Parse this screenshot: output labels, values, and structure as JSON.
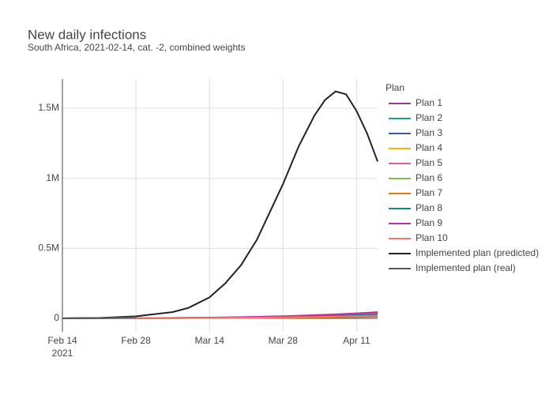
{
  "chart_data": {
    "type": "line",
    "title": "New daily infections",
    "subtitle": "South Africa, 2021-02-14, cat. -2, combined weights",
    "legend_title": "Plan",
    "legend_position": "right",
    "grid": true,
    "x": [
      "2021-02-14",
      "2021-02-21",
      "2021-02-28",
      "2021-03-07",
      "2021-03-10",
      "2021-03-14",
      "2021-03-17",
      "2021-03-20",
      "2021-03-23",
      "2021-03-26",
      "2021-03-28",
      "2021-03-31",
      "2021-04-03",
      "2021-04-05",
      "2021-04-07",
      "2021-04-09",
      "2021-04-11",
      "2021-04-13",
      "2021-04-15"
    ],
    "xlim": [
      "2021-02-14",
      "2021-04-15"
    ],
    "xticks": [
      {
        "value": "2021-02-14",
        "label": "Feb 14"
      },
      {
        "value": "2021-02-28",
        "label": "Feb 28"
      },
      {
        "value": "2021-03-14",
        "label": "Mar 14"
      },
      {
        "value": "2021-03-28",
        "label": "Mar 28"
      },
      {
        "value": "2021-04-11",
        "label": "Apr 11"
      }
    ],
    "xtick_year": "2021",
    "ylim": [
      -96000,
      1709000
    ],
    "yticks": [
      0,
      {
        "value": 500000,
        "label": "0.5M"
      },
      {
        "value": 1000000,
        "label": "1M"
      },
      {
        "value": 1500000,
        "label": "1.5M"
      }
    ],
    "series": [
      {
        "name": "Plan 1",
        "color": "#8e3d8f",
        "values": [
          0,
          1000,
          2000,
          3000,
          4000,
          5000,
          6500,
          8000,
          10000,
          12000,
          13500,
          16000,
          19000,
          21000,
          23000,
          26000,
          29000,
          32000,
          35000
        ]
      },
      {
        "name": "Plan 2",
        "color": "#1f9e89",
        "values": [
          0,
          800,
          1500,
          2500,
          3000,
          4000,
          5000,
          6000,
          7500,
          9000,
          10000,
          12000,
          14000,
          15500,
          17000,
          19000,
          21000,
          23000,
          25000
        ]
      },
      {
        "name": "Plan 3",
        "color": "#3a5ba0",
        "values": [
          0,
          700,
          1300,
          2000,
          2500,
          3200,
          4000,
          5000,
          6000,
          7000,
          8000,
          9500,
          11000,
          12000,
          13500,
          15000,
          16500,
          18000,
          20000
        ]
      },
      {
        "name": "Plan 4",
        "color": "#f2b701",
        "values": [
          0,
          600,
          1100,
          1700,
          2100,
          2700,
          3300,
          4000,
          4800,
          5600,
          6200,
          7300,
          8500,
          9300,
          10200,
          11200,
          12300,
          13400,
          14500
        ]
      },
      {
        "name": "Plan 5",
        "color": "#e05a9b",
        "values": [
          0,
          900,
          1800,
          2800,
          3500,
          4500,
          5800,
          7200,
          9000,
          11000,
          12500,
          15000,
          18000,
          20000,
          22500,
          25000,
          28000,
          31000,
          34000
        ]
      },
      {
        "name": "Plan 6",
        "color": "#7fbf4d",
        "values": [
          0,
          700,
          1400,
          2200,
          2800,
          3600,
          4500,
          5500,
          6700,
          8000,
          9000,
          10800,
          12700,
          14000,
          15500,
          17200,
          19000,
          21000,
          23000
        ]
      },
      {
        "name": "Plan 7",
        "color": "#e07b12",
        "values": [
          0,
          500,
          900,
          1400,
          1700,
          2100,
          2600,
          3100,
          3700,
          4300,
          4800,
          5600,
          6500,
          7100,
          7800,
          8600,
          9400,
          10200,
          11000
        ]
      },
      {
        "name": "Plan 8",
        "color": "#11868a",
        "values": [
          0,
          800,
          1600,
          2500,
          3100,
          4000,
          5100,
          6300,
          7800,
          9300,
          10500,
          12600,
          15000,
          16500,
          18300,
          20300,
          22500,
          24800,
          27000
        ]
      },
      {
        "name": "Plan 9",
        "color": "#c42b9e",
        "values": [
          0,
          1100,
          2200,
          3400,
          4300,
          5600,
          7200,
          9000,
          11300,
          13800,
          15600,
          19000,
          23000,
          25800,
          28800,
          32000,
          35800,
          39800,
          44000
        ]
      },
      {
        "name": "Plan 10",
        "color": "#f0756b",
        "values": [
          0,
          600,
          1200,
          1900,
          2400,
          3000,
          3800,
          4700,
          5700,
          6800,
          7600,
          9000,
          10600,
          11700,
          12900,
          14200,
          15600,
          17100,
          18700
        ]
      },
      {
        "name": "Implemented plan (predicted)",
        "color": "#222222",
        "values": [
          0,
          3000,
          15000,
          45000,
          75000,
          150000,
          250000,
          380000,
          560000,
          800000,
          960000,
          1230000,
          1450000,
          1560000,
          1620000,
          1600000,
          1480000,
          1320000,
          1120000
        ]
      },
      {
        "name": "Implemented plan (real)",
        "color": "#555555",
        "values": [
          0,
          2000,
          8000,
          null,
          null,
          null,
          null,
          null,
          null,
          null,
          null,
          null,
          null,
          null,
          null,
          null,
          null,
          null,
          null
        ]
      }
    ]
  }
}
